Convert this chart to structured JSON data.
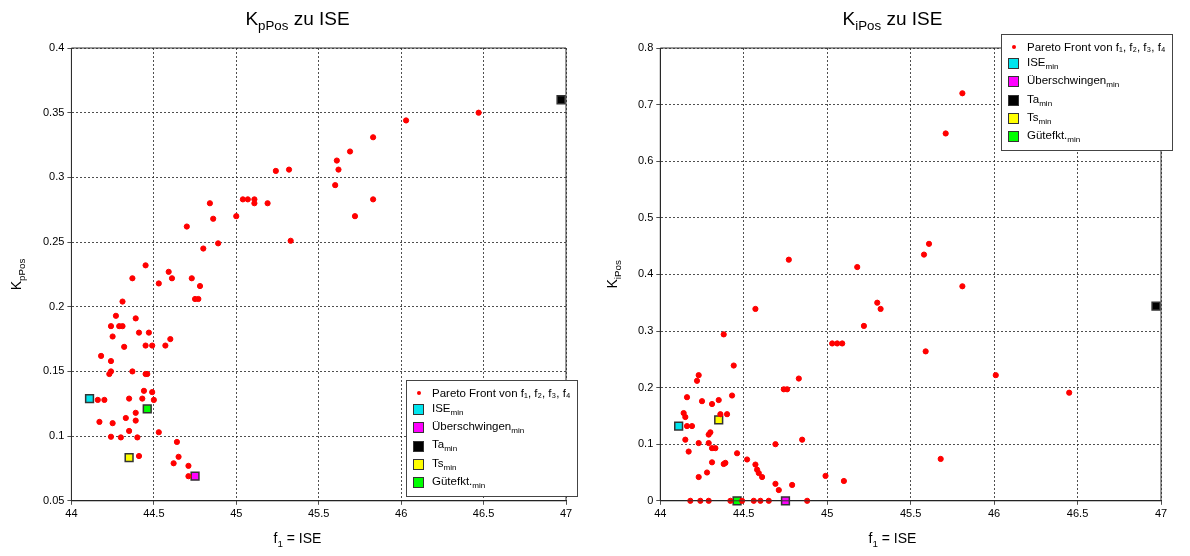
{
  "chart_data": [
    {
      "type": "scatter",
      "title": "K$_{pPos}$ zu ISE",
      "xlabel": "f$_{1}$ = ISE",
      "ylabel": "K$_{pPos}$",
      "xlim": [
        44,
        47
      ],
      "ylim": [
        0.05,
        0.4
      ],
      "xticks": [
        44,
        44.5,
        45,
        45.5,
        46,
        46.5,
        47
      ],
      "yticks": [
        0.05,
        0.1,
        0.15,
        0.2,
        0.25,
        0.3,
        0.35,
        0.4
      ],
      "grid": true,
      "legend": "bottom right",
      "series": [
        {
          "name": "Pareto Front von f₁, f₂, f₃, f₄",
          "color": "#ff0000",
          "marker": "circle",
          "x": [
            46.47,
            46.03,
            45.83,
            45.69,
            45.61,
            45.62,
            45.6,
            45.83,
            45.72,
            45.32,
            45.24,
            45.33,
            45.19,
            45.11,
            45.11,
            45.04,
            45.07,
            45.0,
            44.84,
            44.86,
            44.89,
            44.8,
            44.7,
            44.45,
            44.37,
            44.53,
            44.59,
            44.61,
            44.73,
            44.78,
            44.75,
            44.77,
            44.31,
            44.27,
            44.39,
            44.24,
            44.29,
            44.31,
            44.25,
            44.41,
            44.47,
            44.6,
            44.32,
            44.45,
            44.49,
            44.57,
            44.18,
            44.24,
            44.23,
            44.24,
            44.37,
            44.45,
            44.46,
            44.44,
            44.49,
            44.16,
            44.2,
            44.35,
            44.43,
            44.5,
            44.39,
            44.39,
            44.33,
            44.17,
            44.25,
            44.35,
            44.53,
            44.24,
            44.3,
            44.4,
            44.64,
            44.65,
            44.41,
            44.62,
            44.71,
            44.71
          ],
          "values": [
            0.35,
            0.344,
            0.331,
            0.32,
            0.313,
            0.306,
            0.294,
            0.283,
            0.27,
            0.306,
            0.305,
            0.251,
            0.28,
            0.283,
            0.28,
            0.283,
            0.283,
            0.27,
            0.28,
            0.268,
            0.249,
            0.245,
            0.262,
            0.232,
            0.222,
            0.218,
            0.227,
            0.222,
            0.222,
            0.216,
            0.206,
            0.206,
            0.204,
            0.193,
            0.191,
            0.185,
            0.185,
            0.185,
            0.177,
            0.18,
            0.18,
            0.175,
            0.169,
            0.17,
            0.17,
            0.17,
            0.162,
            0.158,
            0.148,
            0.15,
            0.15,
            0.148,
            0.148,
            0.135,
            0.134,
            0.128,
            0.128,
            0.129,
            0.129,
            0.128,
            0.118,
            0.112,
            0.114,
            0.111,
            0.11,
            0.104,
            0.103,
            0.0995,
            0.099,
            0.099,
            0.0955,
            0.084,
            0.0846,
            0.079,
            0.077,
            0.069
          ]
        },
        {
          "name": "ISE$_{min}$",
          "color": "#00e5ee",
          "marker": "square",
          "x": [
            44.11
          ],
          "values": [
            0.129
          ]
        },
        {
          "name": "Überschwingen$_{min}$",
          "color": "#ff00ff",
          "marker": "square",
          "x": [
            44.75
          ],
          "values": [
            0.069
          ]
        },
        {
          "name": "Ta$_{min}$",
          "color": "#000000",
          "marker": "square",
          "x": [
            46.97
          ],
          "values": [
            0.36
          ]
        },
        {
          "name": "Ts$_{min}$",
          "color": "#ffff00",
          "marker": "square",
          "x": [
            44.35
          ],
          "values": [
            0.0834
          ]
        },
        {
          "name": "Gütefkt.$_{min}$",
          "color": "#00ff00",
          "marker": "square",
          "x": [
            44.46
          ],
          "values": [
            0.121
          ]
        }
      ]
    },
    {
      "type": "scatter",
      "title": "K$_{iPos}$ zu ISE",
      "xlabel": "f$_{1}$ = ISE",
      "ylabel": "K$_{iPos}$",
      "xlim": [
        44,
        47
      ],
      "ylim": [
        0,
        0.8
      ],
      "xticks": [
        44,
        44.5,
        45,
        45.5,
        46,
        46.5,
        47
      ],
      "yticks": [
        0,
        0.1,
        0.2,
        0.3,
        0.4,
        0.5,
        0.6,
        0.7,
        0.8
      ],
      "grid": true,
      "legend": "top right",
      "series": [
        {
          "name": "Pareto Front von f₁, f₂, f₃, f₄",
          "color": "#ff0000",
          "marker": "circle",
          "x": [
            45.81,
            45.71,
            45.61,
            45.58,
            44.77,
            45.18,
            45.81,
            44.57,
            45.3,
            45.32,
            45.22,
            44.38,
            45.03,
            45.06,
            45.09,
            45.59,
            44.44,
            46.01,
            44.23,
            44.22,
            44.83,
            44.74,
            44.76,
            46.45,
            44.16,
            44.43,
            44.25,
            44.35,
            44.31,
            44.14,
            44.15,
            44.4,
            44.36,
            44.16,
            44.19,
            44.15,
            44.23,
            44.29,
            44.29,
            44.3,
            44.31,
            44.33,
            44.17,
            44.46,
            44.69,
            44.85,
            44.52,
            44.31,
            44.38,
            44.39,
            44.57,
            45.68,
            44.58,
            44.59,
            44.61,
            44.28,
            44.23,
            44.99,
            45.1,
            44.69,
            44.79,
            44.71,
            44.18,
            44.24,
            44.29,
            44.42,
            44.49,
            44.56,
            44.6,
            44.65,
            44.88
          ],
          "values": [
            0.72,
            0.649,
            0.454,
            0.435,
            0.426,
            0.413,
            0.379,
            0.339,
            0.35,
            0.339,
            0.309,
            0.294,
            0.278,
            0.278,
            0.278,
            0.264,
            0.239,
            0.222,
            0.222,
            0.212,
            0.216,
            0.197,
            0.197,
            0.191,
            0.183,
            0.186,
            0.176,
            0.178,
            0.171,
            0.155,
            0.148,
            0.153,
            0.153,
            0.132,
            0.132,
            0.108,
            0.102,
            0.102,
            0.117,
            0.121,
            0.093,
            0.093,
            0.087,
            0.084,
            0.1,
            0.108,
            0.073,
            0.068,
            0.065,
            0.067,
            0.064,
            0.074,
            0.055,
            0.049,
            0.042,
            0.05,
            0.042,
            0.044,
            0.035,
            0.03,
            0.028,
            0.019,
            0,
            0,
            0,
            0,
            0,
            0,
            0,
            0,
            0
          ]
        },
        {
          "name": "ISE$_{min}$",
          "color": "#00e5ee",
          "marker": "square",
          "x": [
            44.11
          ],
          "values": [
            0.132
          ]
        },
        {
          "name": "Überschwingen$_{min}$",
          "color": "#ff00ff",
          "marker": "square",
          "x": [
            44.75
          ],
          "values": [
            0
          ]
        },
        {
          "name": "Ta$_{min}$",
          "color": "#000000",
          "marker": "square",
          "x": [
            46.97
          ],
          "values": [
            0.344
          ]
        },
        {
          "name": "Ts$_{min}$",
          "color": "#ffff00",
          "marker": "square",
          "x": [
            44.35
          ],
          "values": [
            0.143
          ]
        },
        {
          "name": "Gütefkt.$_{min}$",
          "color": "#00ff00",
          "marker": "square",
          "x": [
            44.46
          ],
          "values": [
            0
          ]
        }
      ]
    }
  ]
}
